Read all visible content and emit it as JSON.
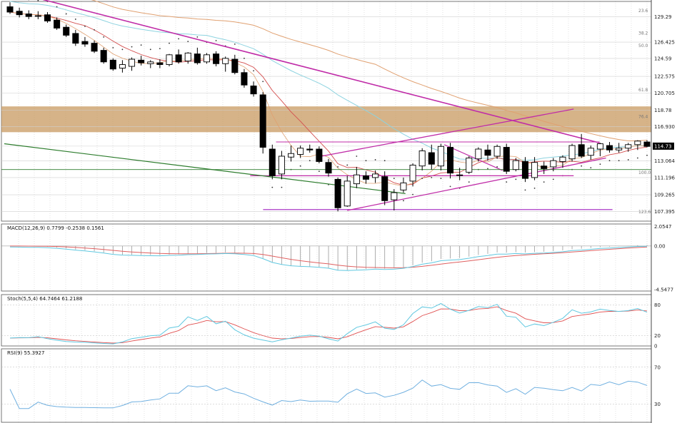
{
  "chart_data": [
    {
      "type": "candlestick",
      "panel": "price",
      "ylim": [
        106.3,
        131.0
      ],
      "y_ticks": [
        "129.29",
        "126.425",
        "124.59",
        "122.575",
        "120.705",
        "118.78",
        "116.930",
        "114.73",
        "113.064",
        "111.196",
        "109.265",
        "107.395"
      ],
      "current_price_label": "114.73",
      "fib_labels": [
        "23.6",
        "38.2",
        "50.0",
        "61.8",
        "76.4",
        "100.0",
        "123.6"
      ],
      "resistance_zone": [
        116.3,
        119.2
      ],
      "candles": [
        {
          "o": 130.4,
          "h": 130.9,
          "l": 129.6,
          "c": 129.8
        },
        {
          "o": 129.9,
          "h": 130.3,
          "l": 129.2,
          "c": 129.5
        },
        {
          "o": 129.6,
          "h": 130.0,
          "l": 129.0,
          "c": 129.3
        },
        {
          "o": 129.4,
          "h": 129.9,
          "l": 129.0,
          "c": 129.4
        },
        {
          "o": 129.5,
          "h": 129.8,
          "l": 128.6,
          "c": 128.8
        },
        {
          "o": 128.9,
          "h": 129.2,
          "l": 127.8,
          "c": 128.0
        },
        {
          "o": 128.1,
          "h": 128.4,
          "l": 127.0,
          "c": 127.2
        },
        {
          "o": 127.4,
          "h": 127.8,
          "l": 126.0,
          "c": 126.3
        },
        {
          "o": 126.5,
          "h": 127.0,
          "l": 125.9,
          "c": 126.2
        },
        {
          "o": 126.3,
          "h": 126.6,
          "l": 125.2,
          "c": 125.4
        },
        {
          "o": 125.5,
          "h": 125.8,
          "l": 124.0,
          "c": 124.2
        },
        {
          "o": 124.4,
          "h": 124.6,
          "l": 123.2,
          "c": 123.4
        },
        {
          "o": 123.5,
          "h": 124.4,
          "l": 123.0,
          "c": 123.9
        },
        {
          "o": 123.7,
          "h": 124.7,
          "l": 123.2,
          "c": 124.5
        },
        {
          "o": 124.4,
          "h": 124.9,
          "l": 123.8,
          "c": 124.1
        },
        {
          "o": 124.0,
          "h": 124.4,
          "l": 123.5,
          "c": 124.2
        },
        {
          "o": 124.1,
          "h": 124.5,
          "l": 123.5,
          "c": 123.9
        },
        {
          "o": 123.9,
          "h": 125.1,
          "l": 123.7,
          "c": 125.0
        },
        {
          "o": 125.0,
          "h": 125.6,
          "l": 124.0,
          "c": 124.2
        },
        {
          "o": 124.3,
          "h": 125.3,
          "l": 124.0,
          "c": 125.2
        },
        {
          "o": 125.1,
          "h": 125.8,
          "l": 123.9,
          "c": 124.1
        },
        {
          "o": 124.2,
          "h": 125.2,
          "l": 124.0,
          "c": 125.0
        },
        {
          "o": 125.1,
          "h": 125.4,
          "l": 123.7,
          "c": 124.0
        },
        {
          "o": 124.0,
          "h": 124.8,
          "l": 123.1,
          "c": 124.6
        },
        {
          "o": 124.5,
          "h": 125.0,
          "l": 122.8,
          "c": 123.0
        },
        {
          "o": 123.0,
          "h": 123.4,
          "l": 121.3,
          "c": 121.6
        },
        {
          "o": 121.5,
          "h": 122.0,
          "l": 120.3,
          "c": 120.6
        },
        {
          "o": 120.5,
          "h": 120.8,
          "l": 113.9,
          "c": 114.6
        },
        {
          "o": 114.4,
          "h": 114.9,
          "l": 111.0,
          "c": 111.4
        },
        {
          "o": 111.6,
          "h": 114.2,
          "l": 111.0,
          "c": 113.6
        },
        {
          "o": 113.5,
          "h": 114.8,
          "l": 113.0,
          "c": 113.9
        },
        {
          "o": 113.8,
          "h": 114.8,
          "l": 113.4,
          "c": 114.5
        },
        {
          "o": 114.4,
          "h": 114.9,
          "l": 114.0,
          "c": 114.3
        },
        {
          "o": 114.4,
          "h": 114.7,
          "l": 112.8,
          "c": 113.0
        },
        {
          "o": 112.9,
          "h": 113.3,
          "l": 111.3,
          "c": 111.7
        },
        {
          "o": 111.0,
          "h": 111.2,
          "l": 107.4,
          "c": 107.8
        },
        {
          "o": 108.0,
          "h": 111.4,
          "l": 107.9,
          "c": 110.8
        },
        {
          "o": 110.5,
          "h": 112.4,
          "l": 110.0,
          "c": 111.5
        },
        {
          "o": 111.4,
          "h": 111.9,
          "l": 110.5,
          "c": 111.0
        },
        {
          "o": 111.2,
          "h": 112.0,
          "l": 110.6,
          "c": 111.6
        },
        {
          "o": 111.3,
          "h": 111.9,
          "l": 108.1,
          "c": 108.6
        },
        {
          "o": 108.7,
          "h": 109.9,
          "l": 107.5,
          "c": 109.5
        },
        {
          "o": 109.8,
          "h": 111.2,
          "l": 109.5,
          "c": 110.6
        },
        {
          "o": 110.8,
          "h": 112.8,
          "l": 110.2,
          "c": 112.6
        },
        {
          "o": 112.5,
          "h": 114.5,
          "l": 112.0,
          "c": 114.2
        },
        {
          "o": 114.0,
          "h": 114.9,
          "l": 112.1,
          "c": 112.7
        },
        {
          "o": 112.5,
          "h": 115.0,
          "l": 112.0,
          "c": 114.7
        },
        {
          "o": 114.6,
          "h": 115.1,
          "l": 111.1,
          "c": 111.7
        },
        {
          "o": 111.5,
          "h": 112.3,
          "l": 110.9,
          "c": 111.5
        },
        {
          "o": 111.8,
          "h": 113.6,
          "l": 111.6,
          "c": 113.4
        },
        {
          "o": 113.3,
          "h": 114.6,
          "l": 113.0,
          "c": 114.4
        },
        {
          "o": 114.3,
          "h": 114.9,
          "l": 113.1,
          "c": 113.7
        },
        {
          "o": 113.6,
          "h": 114.9,
          "l": 113.3,
          "c": 114.7
        },
        {
          "o": 114.6,
          "h": 115.0,
          "l": 111.6,
          "c": 111.9
        },
        {
          "o": 112.1,
          "h": 113.4,
          "l": 111.9,
          "c": 113.1
        },
        {
          "o": 113.0,
          "h": 113.5,
          "l": 110.7,
          "c": 111.1
        },
        {
          "o": 111.2,
          "h": 113.5,
          "l": 110.9,
          "c": 112.9
        },
        {
          "o": 112.5,
          "h": 113.0,
          "l": 111.6,
          "c": 112.2
        },
        {
          "o": 112.4,
          "h": 113.4,
          "l": 111.9,
          "c": 113.1
        },
        {
          "o": 113.0,
          "h": 113.7,
          "l": 112.3,
          "c": 113.5
        },
        {
          "o": 113.3,
          "h": 115.0,
          "l": 113.0,
          "c": 114.8
        },
        {
          "o": 114.9,
          "h": 116.1,
          "l": 113.4,
          "c": 113.6
        },
        {
          "o": 113.7,
          "h": 114.8,
          "l": 113.2,
          "c": 114.5
        },
        {
          "o": 114.4,
          "h": 115.1,
          "l": 113.6,
          "c": 115.0
        },
        {
          "o": 114.8,
          "h": 115.2,
          "l": 114.0,
          "c": 114.3
        },
        {
          "o": 114.3,
          "h": 115.1,
          "l": 114.0,
          "c": 114.5
        },
        {
          "o": 114.5,
          "h": 115.1,
          "l": 114.1,
          "c": 114.9
        },
        {
          "o": 114.9,
          "h": 115.4,
          "l": 114.3,
          "c": 115.3
        },
        {
          "o": 115.2,
          "h": 115.4,
          "l": 114.6,
          "c": 114.7
        }
      ]
    },
    {
      "type": "macd",
      "panel": "MACD",
      "title": "MACD(12,26,9) 0.7799 -0.2538 0.1561",
      "y_ticks": [
        "2.0547",
        "0.00",
        "-4.5477"
      ],
      "ylim": [
        -4.7,
        2.3
      ]
    },
    {
      "type": "stochastic",
      "panel": "Stoch",
      "title": "Stoch(5,5,4) 64.7464 61.2188",
      "y_ticks": [
        "80",
        "20",
        "0"
      ],
      "ylim": [
        0,
        100
      ]
    },
    {
      "type": "line",
      "panel": "RSI",
      "title": "RSI(9) 55.3927",
      "y_ticks": [
        "70",
        "30"
      ],
      "ylim": [
        10,
        90
      ]
    }
  ],
  "colors": {
    "bull": "#ffffff",
    "bear": "#000000",
    "trendline": "#c02ca8",
    "support": "#a020c0",
    "green_line": "#2e7d2e",
    "ma_blue": "#8dd3e0",
    "ma_orange": "#e0a070",
    "ma_red": "#d45050",
    "zone": "#c89a60",
    "macd_signal": "#e06060",
    "macd_line": "#60c8e0",
    "stoch_main": "#60c8e0",
    "stoch_signal": "#e05050",
    "rsi": "#70b0e0"
  }
}
